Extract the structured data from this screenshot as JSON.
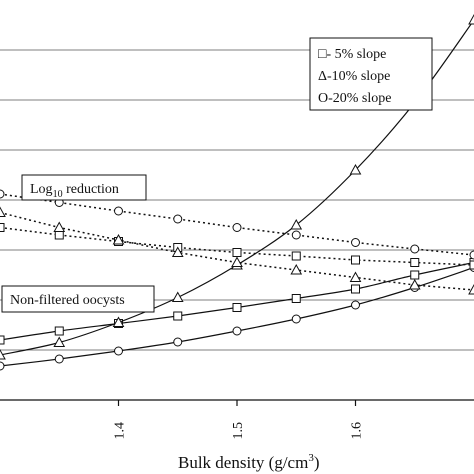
{
  "chart_data": {
    "type": "line",
    "xlabel": "Bulk density (g/cm3)",
    "xlabel_main": "Bulk density (g/cm",
    "xlabel_sup": "3",
    "xlabel_close": ")",
    "x_ticks": [
      "1.4",
      "1.5",
      "1.6"
    ],
    "x_tick_values": [
      1.4,
      1.5,
      1.6
    ],
    "xlim": [
      1.3,
      1.7
    ],
    "ylim": [
      0,
      8
    ],
    "y_gridlines": [
      1,
      2,
      3,
      4,
      5,
      6,
      7
    ],
    "grid": "horizontal",
    "legend": {
      "placement": "top-right",
      "entries": [
        "□-  5% slope",
        "Δ-10% slope",
        "O-20% slope"
      ]
    },
    "annotations": [
      {
        "text_main": "Log",
        "text_sub": "10",
        "text_rest": " reduction"
      },
      {
        "text": "Non-filtered oocysts"
      }
    ],
    "series": [
      {
        "group": "non-filtered",
        "marker": "square",
        "style": "solid",
        "x": [
          1.3,
          1.35,
          1.4,
          1.45,
          1.5,
          1.55,
          1.6,
          1.65,
          1.7
        ],
        "y": [
          1.2,
          1.38,
          1.53,
          1.68,
          1.85,
          2.03,
          2.22,
          2.5,
          2.75
        ]
      },
      {
        "group": "non-filtered",
        "marker": "triangle",
        "style": "solid",
        "x": [
          1.3,
          1.35,
          1.4,
          1.45,
          1.5,
          1.55,
          1.6,
          1.65,
          1.7
        ],
        "y": [
          0.9,
          1.15,
          1.55,
          2.05,
          2.7,
          3.5,
          4.6,
          5.95,
          7.6
        ]
      },
      {
        "group": "non-filtered",
        "marker": "circle",
        "style": "solid",
        "x": [
          1.3,
          1.35,
          1.4,
          1.45,
          1.5,
          1.55,
          1.6,
          1.65,
          1.7
        ],
        "y": [
          0.68,
          0.82,
          0.98,
          1.16,
          1.38,
          1.62,
          1.9,
          2.25,
          2.65
        ]
      },
      {
        "group": "log-reduction",
        "marker": "square",
        "style": "dotted",
        "x": [
          1.3,
          1.35,
          1.4,
          1.45,
          1.5,
          1.55,
          1.6,
          1.65,
          1.7
        ],
        "y": [
          3.45,
          3.3,
          3.17,
          3.05,
          2.95,
          2.88,
          2.8,
          2.75,
          2.7
        ]
      },
      {
        "group": "log-reduction",
        "marker": "triangle",
        "style": "dotted",
        "x": [
          1.3,
          1.35,
          1.4,
          1.45,
          1.5,
          1.55,
          1.6,
          1.65,
          1.7
        ],
        "y": [
          3.75,
          3.45,
          3.2,
          2.95,
          2.75,
          2.6,
          2.45,
          2.3,
          2.2
        ]
      },
      {
        "group": "log-reduction",
        "marker": "circle",
        "style": "dotted",
        "x": [
          1.3,
          1.35,
          1.4,
          1.45,
          1.5,
          1.55,
          1.6,
          1.65,
          1.7
        ],
        "y": [
          4.12,
          3.95,
          3.78,
          3.62,
          3.45,
          3.3,
          3.15,
          3.02,
          2.9
        ]
      }
    ]
  }
}
